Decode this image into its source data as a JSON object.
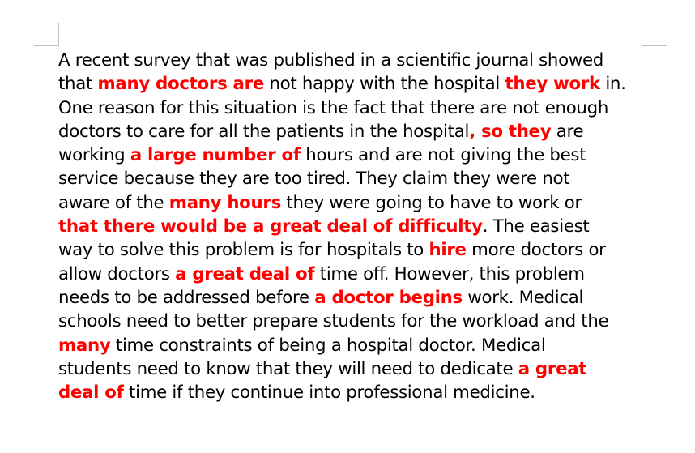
{
  "document": {
    "lines": [
      [
        {
          "t": "A recent survey that was published in a scientific journal showed",
          "h": false
        }
      ],
      [
        {
          "t": "that ",
          "h": false
        },
        {
          "t": "many doctors are",
          "h": true
        },
        {
          "t": " not happy with the hospital ",
          "h": false
        },
        {
          "t": "they work",
          "h": true
        },
        {
          "t": " in.",
          "h": false
        }
      ],
      [
        {
          "t": "One reason for this situation is the fact that there are not enough",
          "h": false
        }
      ],
      [
        {
          "t": "doctors to care for all the patients in the hospital",
          "h": false
        },
        {
          "t": ", so they",
          "h": true
        },
        {
          "t": " are",
          "h": false
        }
      ],
      [
        {
          "t": "working ",
          "h": false
        },
        {
          "t": "a large number of",
          "h": true
        },
        {
          "t": " hours and are not giving the best",
          "h": false
        }
      ],
      [
        {
          "t": "service because they are too tired. They claim they were not",
          "h": false
        }
      ],
      [
        {
          "t": "aware of the ",
          "h": false
        },
        {
          "t": "many hours",
          "h": true
        },
        {
          "t": " they were going to have to work or",
          "h": false
        }
      ],
      [
        {
          "t": "that there would be a great deal of difficulty",
          "h": true
        },
        {
          "t": ". The easiest",
          "h": false
        }
      ],
      [
        {
          "t": "way to solve this problem is for hospitals to ",
          "h": false
        },
        {
          "t": "hire",
          "h": true
        },
        {
          "t": " more doctors or",
          "h": false
        }
      ],
      [
        {
          "t": "allow doctors ",
          "h": false
        },
        {
          "t": "a great deal of",
          "h": true
        },
        {
          "t": " time off. However, this problem",
          "h": false
        }
      ],
      [
        {
          "t": "needs to be addressed before ",
          "h": false
        },
        {
          "t": "a doctor begins",
          "h": true
        },
        {
          "t": " work. Medical",
          "h": false
        }
      ],
      [
        {
          "t": "schools need to better prepare students for the workload and the",
          "h": false
        }
      ],
      [
        {
          "t": "many",
          "h": true
        },
        {
          "t": " time constraints of being a hospital doctor. Medical",
          "h": false
        }
      ],
      [
        {
          "t": "students need to know that they will need to dedicate ",
          "h": false
        },
        {
          "t": "a great",
          "h": true
        }
      ],
      [
        {
          "t": "deal of",
          "h": true
        },
        {
          "t": " time if they continue into professional medicine.",
          "h": false
        }
      ]
    ]
  },
  "colors": {
    "highlight": "#ff0000",
    "text": "#000000",
    "page_marks": "#bfbfbf"
  }
}
